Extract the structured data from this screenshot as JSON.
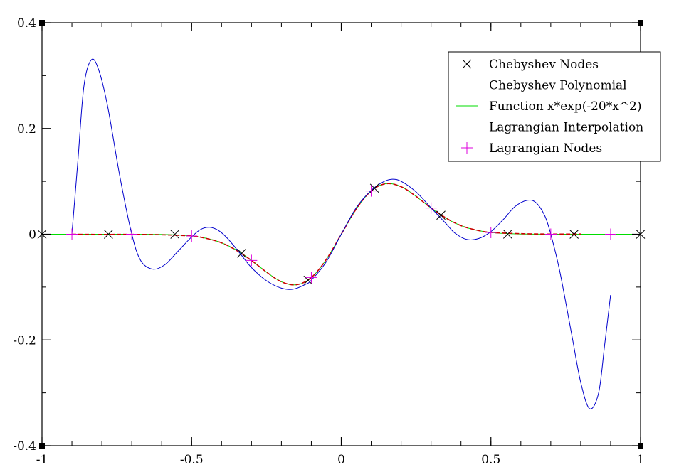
{
  "chart_data": {
    "type": "line",
    "title": "",
    "xlabel": "",
    "ylabel": "",
    "xlim": [
      -1,
      1
    ],
    "ylim": [
      -0.4,
      0.4
    ],
    "grid": false,
    "legend_position": "top-right",
    "x_ticks": [
      {
        "value": -1,
        "label": "-1"
      },
      {
        "value": -0.5,
        "label": "-0.5"
      },
      {
        "value": 0,
        "label": "0"
      },
      {
        "value": 0.5,
        "label": "0.5"
      },
      {
        "value": 1,
        "label": "1"
      }
    ],
    "y_ticks": [
      {
        "value": 0.4,
        "label": "0.4"
      },
      {
        "value": 0.2,
        "label": "0.2"
      },
      {
        "value": 0,
        "label": "0"
      },
      {
        "value": -0.2,
        "label": "-0.2"
      },
      {
        "value": -0.4,
        "label": "-0.4"
      }
    ],
    "series": [
      {
        "name": "Chebyshev Nodes",
        "style": "marker-x",
        "color": "#000000",
        "points": [
          [
            -1,
            0
          ],
          [
            -0.778,
            0.0
          ],
          [
            -0.556,
            -0.0001
          ],
          [
            -0.333,
            -0.036
          ],
          [
            -0.111,
            -0.087
          ],
          [
            0.111,
            0.087
          ],
          [
            0.333,
            0.036
          ],
          [
            0.556,
            0.0001
          ],
          [
            0.778,
            0.0
          ],
          [
            1,
            0
          ]
        ]
      },
      {
        "name": "Chebyshev Polynomial",
        "style": "line",
        "color": "#cc0000",
        "points": [
          [
            -0.9,
            0.0
          ],
          [
            -0.8,
            -0.0004
          ],
          [
            -0.7,
            -0.0003
          ],
          [
            -0.6,
            -0.0011
          ],
          [
            -0.5,
            -0.0034
          ],
          [
            -0.45,
            -0.0081
          ],
          [
            -0.4,
            -0.0163
          ],
          [
            -0.35,
            -0.0306
          ],
          [
            -0.3,
            -0.0496
          ],
          [
            -0.25,
            -0.0716
          ],
          [
            -0.2,
            -0.0899
          ],
          [
            -0.15,
            -0.0956
          ],
          [
            -0.1,
            -0.0819
          ],
          [
            -0.05,
            -0.0476
          ],
          [
            0,
            0
          ],
          [
            0.05,
            0.0476
          ],
          [
            0.1,
            0.0819
          ],
          [
            0.15,
            0.0956
          ],
          [
            0.2,
            0.0899
          ],
          [
            0.25,
            0.0716
          ],
          [
            0.3,
            0.0496
          ],
          [
            0.35,
            0.0306
          ],
          [
            0.4,
            0.0163
          ],
          [
            0.45,
            0.0081
          ],
          [
            0.5,
            0.0034
          ],
          [
            0.6,
            0.0011
          ],
          [
            0.7,
            0.0003
          ],
          [
            0.8,
            0.0004
          ]
        ]
      },
      {
        "name": "Function x*exp(-20*x^2)",
        "style": "line",
        "color": "#00dd00",
        "formula": "x*exp(-20*x^2)",
        "domain": [
          -1,
          1
        ]
      },
      {
        "name": "Lagrangian Interpolation",
        "style": "line",
        "color": "#0000cc",
        "points": [
          [
            -0.9,
            0.0
          ],
          [
            -0.88,
            0.14
          ],
          [
            -0.86,
            0.28
          ],
          [
            -0.835,
            0.33
          ],
          [
            -0.81,
            0.31
          ],
          [
            -0.78,
            0.24
          ],
          [
            -0.74,
            0.11
          ],
          [
            -0.7,
            0.0
          ],
          [
            -0.67,
            -0.05
          ],
          [
            -0.63,
            -0.066
          ],
          [
            -0.59,
            -0.058
          ],
          [
            -0.55,
            -0.035
          ],
          [
            -0.5,
            -0.005
          ],
          [
            -0.47,
            0.009
          ],
          [
            -0.44,
            0.013
          ],
          [
            -0.41,
            0.007
          ],
          [
            -0.38,
            -0.008
          ],
          [
            -0.34,
            -0.035
          ],
          [
            -0.3,
            -0.063
          ],
          [
            -0.25,
            -0.088
          ],
          [
            -0.2,
            -0.102
          ],
          [
            -0.16,
            -0.104
          ],
          [
            -0.12,
            -0.095
          ],
          [
            -0.1,
            -0.087
          ],
          [
            -0.05,
            -0.052
          ],
          [
            0,
            0
          ],
          [
            0.05,
            0.05
          ],
          [
            0.1,
            0.083
          ],
          [
            0.14,
            0.099
          ],
          [
            0.17,
            0.104
          ],
          [
            0.2,
            0.1
          ],
          [
            0.25,
            0.08
          ],
          [
            0.3,
            0.05
          ],
          [
            0.35,
            0.02
          ],
          [
            0.38,
            0.002
          ],
          [
            0.42,
            -0.01
          ],
          [
            0.46,
            -0.008
          ],
          [
            0.5,
            0.005
          ],
          [
            0.54,
            0.027
          ],
          [
            0.58,
            0.052
          ],
          [
            0.62,
            0.064
          ],
          [
            0.65,
            0.06
          ],
          [
            0.68,
            0.035
          ],
          [
            0.7,
            0.0
          ],
          [
            0.73,
            -0.07
          ],
          [
            0.77,
            -0.19
          ],
          [
            0.8,
            -0.28
          ],
          [
            0.83,
            -0.33
          ],
          [
            0.86,
            -0.3
          ],
          [
            0.88,
            -0.21
          ],
          [
            0.9,
            -0.115
          ]
        ]
      },
      {
        "name": "Lagrangian Nodes",
        "style": "marker-plus",
        "color": "#dd00dd",
        "points": [
          [
            -0.9,
            0.0
          ],
          [
            -0.7,
            0.0
          ],
          [
            -0.5,
            -0.0034
          ],
          [
            -0.3,
            -0.0496
          ],
          [
            -0.1,
            -0.0819
          ],
          [
            0.1,
            0.0819
          ],
          [
            0.3,
            0.0496
          ],
          [
            0.5,
            0.0034
          ],
          [
            0.7,
            0.0
          ],
          [
            0.9,
            0.0
          ]
        ]
      }
    ]
  }
}
